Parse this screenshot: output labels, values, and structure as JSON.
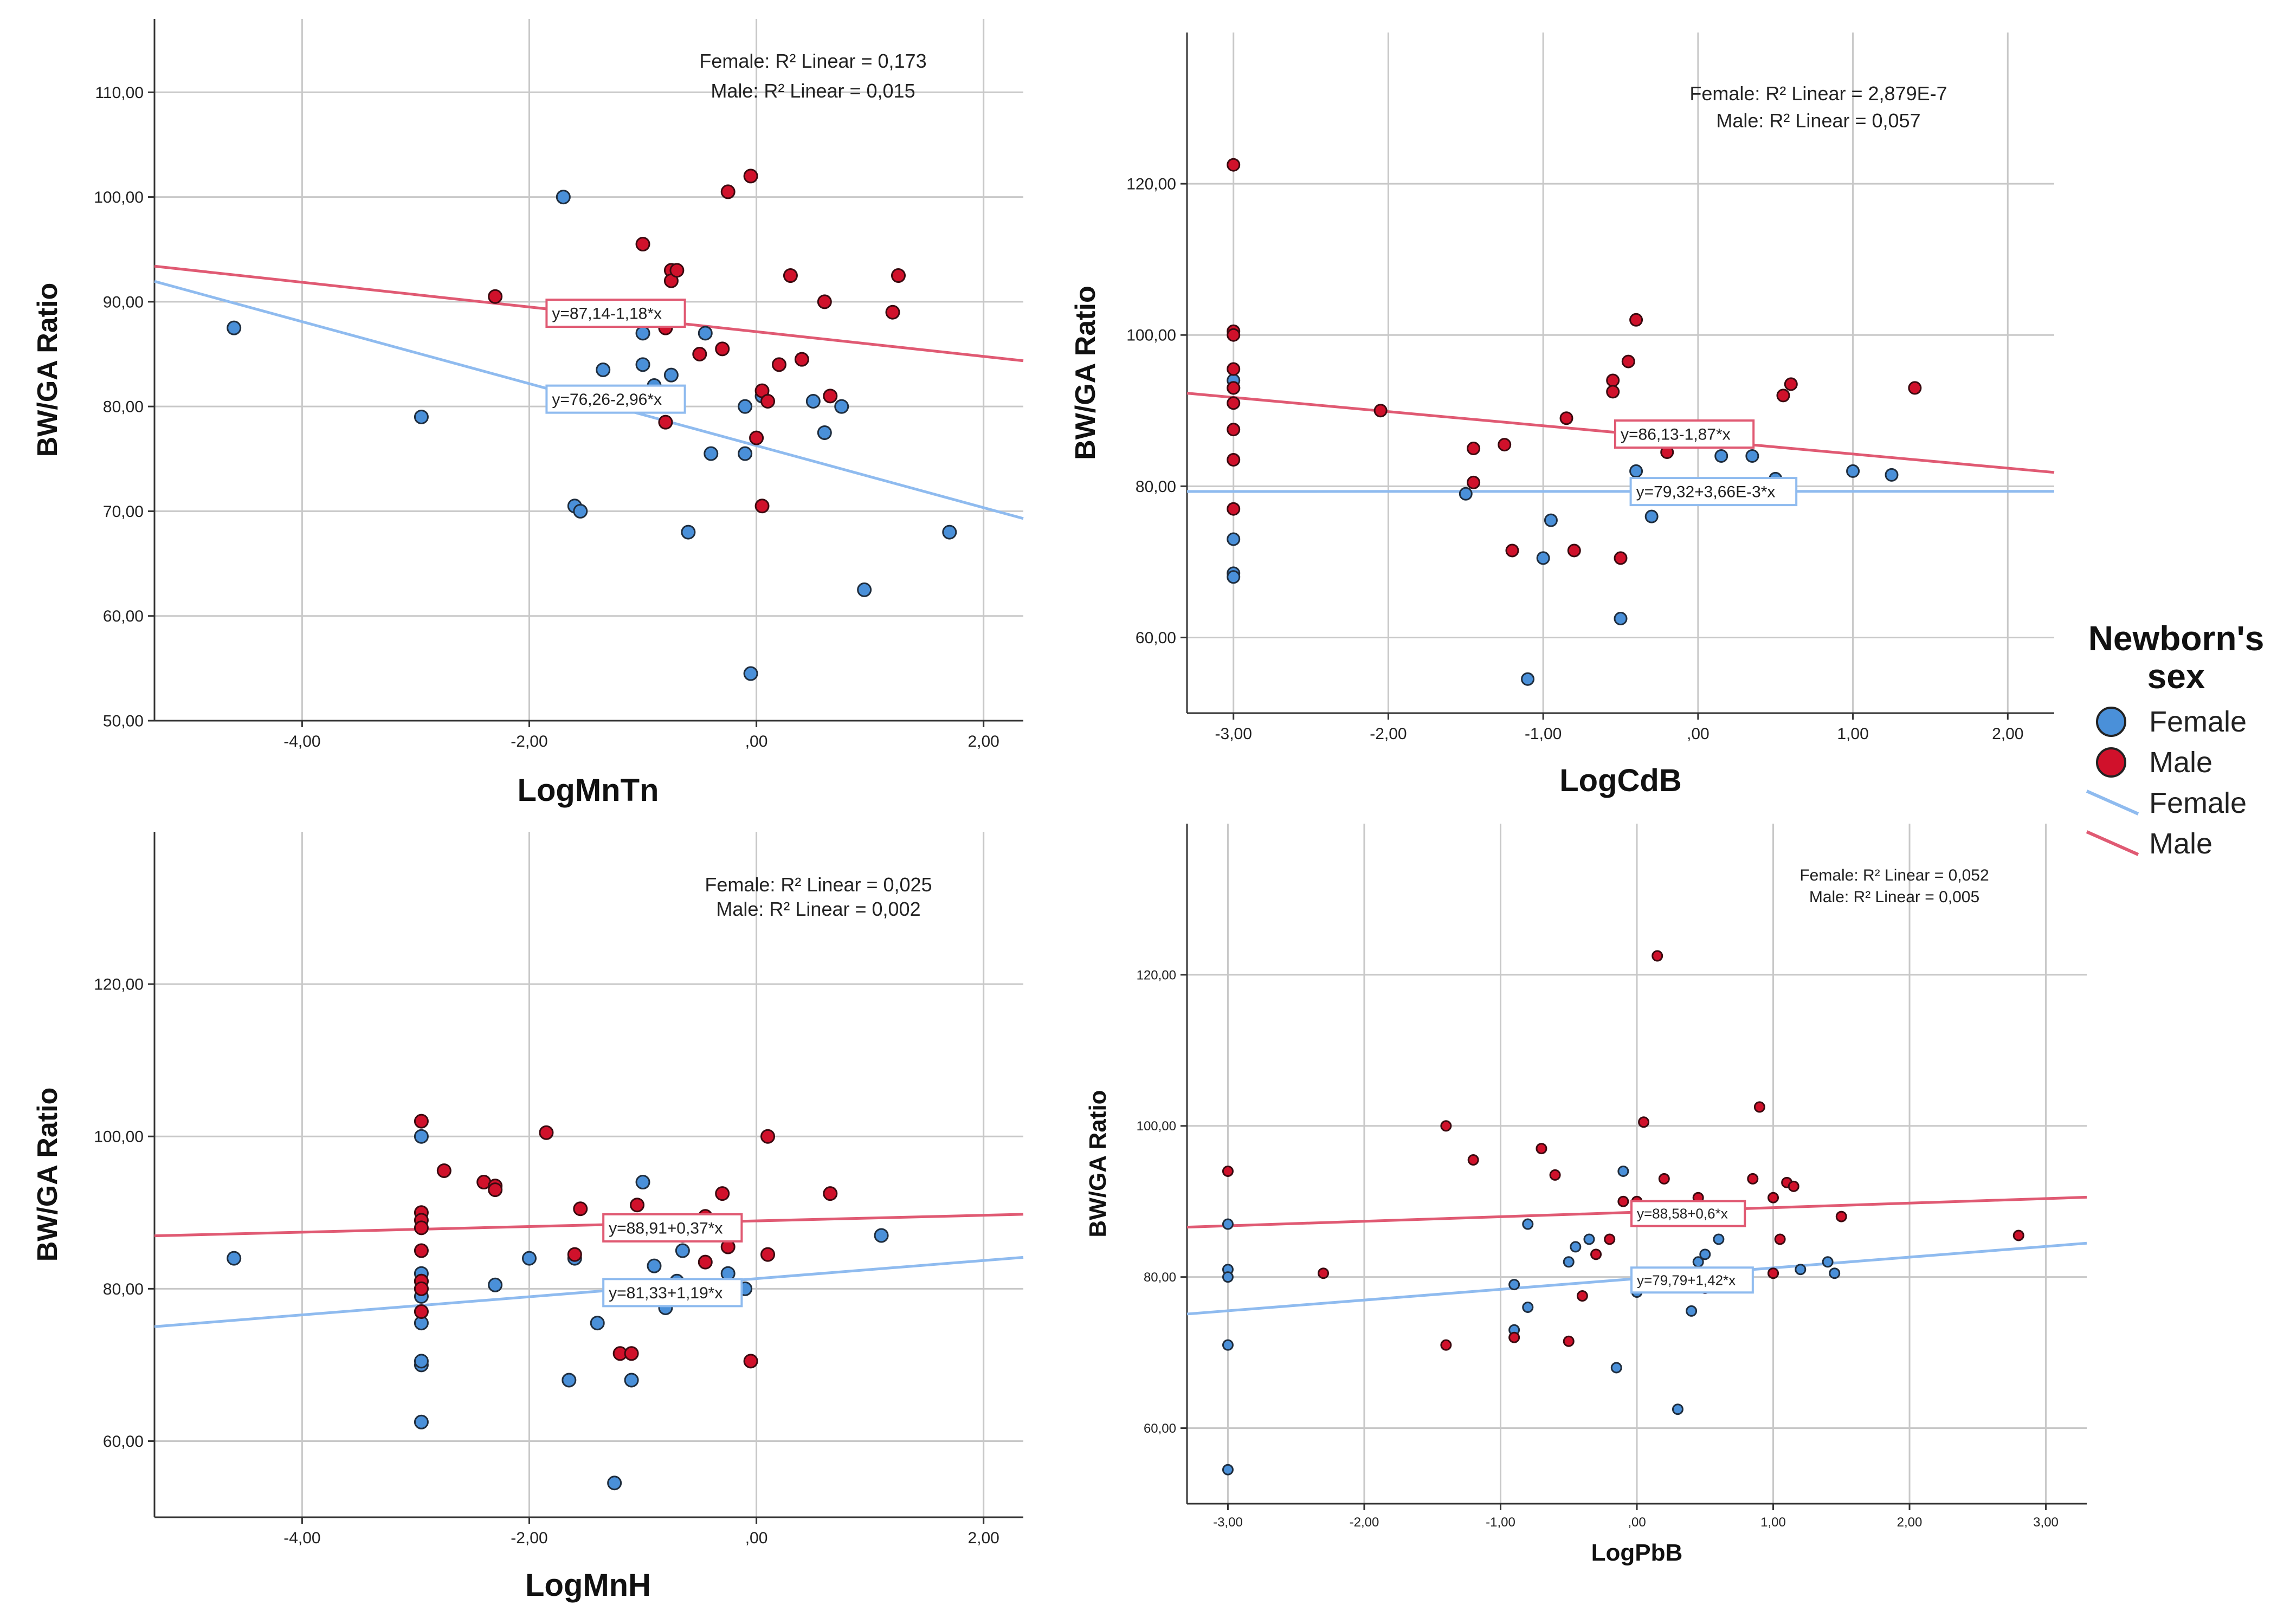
{
  "colors": {
    "female": "#4a90d9",
    "male": "#d0112b",
    "female_line": "#8fbbef",
    "male_line": "#e05a73",
    "grid": "#c8c8c8"
  },
  "legend": {
    "title_line1": "Newborn's",
    "title_line2": "sex",
    "items": [
      {
        "label": "Female",
        "kind": "marker",
        "series": "female"
      },
      {
        "label": "Male",
        "kind": "marker",
        "series": "male"
      },
      {
        "label": "Female",
        "kind": "line",
        "series": "female"
      },
      {
        "label": "Male",
        "kind": "line",
        "series": "male"
      }
    ]
  },
  "chart_data": [
    {
      "type": "scatter",
      "id": "mntn",
      "xlabel": "LogMnTn",
      "ylabel": "BW/GA Ratio",
      "xlim": [
        -5.3,
        2.35
      ],
      "ylim": [
        50,
        117
      ],
      "xticks": [
        -4,
        -2,
        0,
        2
      ],
      "xtick_labels": [
        "-4,00",
        "-2,00",
        ",00",
        "2,00"
      ],
      "yticks": [
        50,
        60,
        70,
        80,
        90,
        100,
        110
      ],
      "ytick_labels": [
        "50,00",
        "60,00",
        "70,00",
        "80,00",
        "90,00",
        "100,00",
        "110,00"
      ],
      "r2_female": "Female: R² Linear = 0,173",
      "r2_male": "Male: R² Linear = 0,015",
      "eq_female": "y=76,26-2,96*x",
      "eq_male": "y=87,14-1,18*x",
      "fit_female": {
        "intercept": 76.26,
        "slope": -2.96
      },
      "fit_male": {
        "intercept": 87.14,
        "slope": -1.18
      },
      "eq_female_pos": [
        -1.8,
        80.7
      ],
      "eq_male_pos": [
        -1.8,
        88.9
      ],
      "female": [
        [
          -4.6,
          87.5
        ],
        [
          -2.95,
          79
        ],
        [
          -1.7,
          100
        ],
        [
          -1.6,
          70.5
        ],
        [
          -1.55,
          70
        ],
        [
          -1.35,
          83.5
        ],
        [
          -1.0,
          87
        ],
        [
          -1.0,
          84
        ],
        [
          -0.9,
          82
        ],
        [
          -0.9,
          81
        ],
        [
          -0.75,
          83
        ],
        [
          -0.6,
          68
        ],
        [
          -0.45,
          87
        ],
        [
          -0.4,
          75.5
        ],
        [
          -0.1,
          80
        ],
        [
          -0.1,
          75.5
        ],
        [
          -0.05,
          54.5
        ],
        [
          0.05,
          81
        ],
        [
          0.5,
          80.5
        ],
        [
          0.6,
          77.5
        ],
        [
          0.75,
          80
        ],
        [
          0.95,
          62.5
        ],
        [
          1.7,
          68
        ]
      ],
      "male": [
        [
          -2.3,
          90.5
        ],
        [
          -1.0,
          95.5
        ],
        [
          -0.8,
          87.5
        ],
        [
          -0.75,
          93
        ],
        [
          -0.75,
          92
        ],
        [
          -0.7,
          93
        ],
        [
          -0.7,
          80.5
        ],
        [
          -0.8,
          78.5
        ],
        [
          -0.5,
          85
        ],
        [
          -0.3,
          85.5
        ],
        [
          -0.25,
          100.5
        ],
        [
          -0.05,
          102
        ],
        [
          0.0,
          77
        ],
        [
          0.05,
          70.5
        ],
        [
          0.05,
          81.5
        ],
        [
          0.1,
          80.5
        ],
        [
          0.2,
          84
        ],
        [
          0.3,
          92.5
        ],
        [
          0.4,
          84.5
        ],
        [
          0.6,
          90
        ],
        [
          0.65,
          81
        ],
        [
          1.2,
          89
        ],
        [
          1.25,
          92.5
        ]
      ]
    },
    {
      "type": "scatter",
      "id": "cdb",
      "xlabel": "LogCdB",
      "ylabel": "BW/GA Ratio",
      "xlim": [
        -3.3,
        2.3
      ],
      "ylim": [
        50,
        140
      ],
      "xticks": [
        -3,
        -2,
        -1,
        0,
        1,
        2
      ],
      "xtick_labels": [
        "-3,00",
        "-2,00",
        "-1,00",
        ",00",
        "1,00",
        "2,00"
      ],
      "yticks": [
        60,
        80,
        100,
        120
      ],
      "ytick_labels": [
        "60,00",
        "80,00",
        "100,00",
        "120,00"
      ],
      "r2_female": "Female: R² Linear = 2,879E-7",
      "r2_male": "Male: R² Linear = 0,057",
      "eq_female": "y=79,32+3,66E-3*x",
      "eq_male": "y=86,13-1,87*x",
      "fit_female": {
        "intercept": 79.32,
        "slope": 0.00366
      },
      "fit_male": {
        "intercept": 86.13,
        "slope": -1.87
      },
      "eq_female_pos": [
        -0.4,
        79.3
      ],
      "eq_male_pos": [
        -0.5,
        86.9
      ],
      "female": [
        [
          -3,
          94
        ],
        [
          -3,
          93
        ],
        [
          -3,
          73
        ],
        [
          -3,
          68.5
        ],
        [
          -3,
          68
        ],
        [
          -1.5,
          79
        ],
        [
          -1.1,
          54.5
        ],
        [
          -1.0,
          70.5
        ],
        [
          -0.95,
          75.5
        ],
        [
          -0.4,
          82
        ],
        [
          -0.3,
          76
        ],
        [
          -0.5,
          62.5
        ],
        [
          0.15,
          84
        ],
        [
          0.2,
          87
        ],
        [
          0.35,
          84
        ],
        [
          0.5,
          81
        ],
        [
          1.0,
          82
        ],
        [
          1.25,
          81.5
        ]
      ],
      "male": [
        [
          -3,
          122.5
        ],
        [
          -3,
          100.5
        ],
        [
          -3,
          100
        ],
        [
          -3,
          95.5
        ],
        [
          -3,
          93
        ],
        [
          -3,
          91
        ],
        [
          -3,
          87.5
        ],
        [
          -3,
          83.5
        ],
        [
          -3,
          77
        ],
        [
          -2.05,
          90
        ],
        [
          -1.45,
          85
        ],
        [
          -1.45,
          80.5
        ],
        [
          -1.2,
          71.5
        ],
        [
          -1.25,
          85.5
        ],
        [
          -0.8,
          71.5
        ],
        [
          -0.85,
          89
        ],
        [
          -0.55,
          94
        ],
        [
          -0.55,
          92.5
        ],
        [
          -0.5,
          70.5
        ],
        [
          -0.45,
          96.5
        ],
        [
          -0.4,
          102
        ],
        [
          -0.2,
          84.5
        ],
        [
          0.55,
          92
        ],
        [
          0.6,
          93.5
        ],
        [
          1.4,
          93
        ]
      ]
    },
    {
      "type": "scatter",
      "id": "mnh",
      "xlabel": "LogMnH",
      "ylabel": "BW/GA Ratio",
      "xlim": [
        -5.3,
        2.35
      ],
      "ylim": [
        50,
        140
      ],
      "xticks": [
        -4,
        -2,
        0,
        2
      ],
      "xtick_labels": [
        "-4,00",
        "-2,00",
        ",00",
        "2,00"
      ],
      "yticks": [
        60,
        80,
        100,
        120
      ],
      "ytick_labels": [
        "60,00",
        "80,00",
        "100,00",
        "120,00"
      ],
      "r2_female": "Female: R² Linear = 0,025",
      "r2_male": "Male: R² Linear = 0,002",
      "eq_female": "y=81,33+1,19*x",
      "eq_male": "y=88,91+0,37*x",
      "fit_female": {
        "intercept": 81.33,
        "slope": 1.19
      },
      "fit_male": {
        "intercept": 88.91,
        "slope": 0.37
      },
      "eq_female_pos": [
        -1.3,
        79.5
      ],
      "eq_male_pos": [
        -1.3,
        88.0
      ],
      "female": [
        [
          -4.6,
          84
        ],
        [
          -2.95,
          82
        ],
        [
          -2.95,
          81
        ],
        [
          -2.95,
          80
        ],
        [
          -2.95,
          79
        ],
        [
          -2.95,
          75.5
        ],
        [
          -2.95,
          70
        ],
        [
          -2.95,
          62.5
        ],
        [
          -2.95,
          70.5
        ],
        [
          -2.95,
          100
        ],
        [
          -2.3,
          80.5
        ],
        [
          -2.0,
          84
        ],
        [
          -1.6,
          84
        ],
        [
          -1.65,
          68
        ],
        [
          -1.4,
          75.5
        ],
        [
          -1.25,
          54.5
        ],
        [
          -1.0,
          94
        ],
        [
          -0.9,
          83
        ],
        [
          -0.8,
          77.5
        ],
        [
          -0.65,
          87
        ],
        [
          -0.65,
          85
        ],
        [
          -0.7,
          81
        ],
        [
          -0.25,
          88
        ],
        [
          -0.25,
          82
        ],
        [
          -0.1,
          80
        ],
        [
          -1.1,
          68
        ],
        [
          1.1,
          87
        ]
      ],
      "male": [
        [
          -2.95,
          102
        ],
        [
          -2.95,
          90
        ],
        [
          -2.95,
          89
        ],
        [
          -2.95,
          88
        ],
        [
          -2.95,
          85
        ],
        [
          -2.95,
          81
        ],
        [
          -2.95,
          80
        ],
        [
          -2.95,
          77
        ],
        [
          -2.75,
          95.5
        ],
        [
          -2.4,
          94
        ],
        [
          -2.3,
          93.5
        ],
        [
          -2.3,
          93
        ],
        [
          -1.85,
          100.5
        ],
        [
          -1.55,
          90.5
        ],
        [
          -1.6,
          84.5
        ],
        [
          -1.2,
          71.5
        ],
        [
          -1.1,
          71.5
        ],
        [
          -1.05,
          91
        ],
        [
          -0.45,
          89.5
        ],
        [
          -0.45,
          83.5
        ],
        [
          -0.3,
          92.5
        ],
        [
          -0.25,
          85.5
        ],
        [
          0.1,
          100
        ],
        [
          0.1,
          84.5
        ],
        [
          -0.05,
          70.5
        ],
        [
          0.65,
          92.5
        ]
      ]
    },
    {
      "type": "scatter",
      "id": "pbb",
      "xlabel": "LogPbB",
      "ylabel": "BW/GA Ratio",
      "xlim": [
        -3.3,
        3.3
      ],
      "ylim": [
        50,
        140
      ],
      "xticks": [
        -3,
        -2,
        -1,
        0,
        1,
        2,
        3
      ],
      "xtick_labels": [
        "-3,00",
        "-2,00",
        "-1,00",
        ",00",
        "1,00",
        "2,00",
        "3,00"
      ],
      "yticks": [
        60,
        80,
        100,
        120
      ],
      "ytick_labels": [
        "60,00",
        "80,00",
        "100,00",
        "120,00"
      ],
      "r2_female": "Female: R² Linear = 0,052",
      "r2_male": "Male: R² Linear = 0,005",
      "eq_female": "y=79,79+1,42*x",
      "eq_male": "y=88,58+0,6*x",
      "fit_female": {
        "intercept": 79.79,
        "slope": 1.42
      },
      "fit_male": {
        "intercept": 88.58,
        "slope": 0.6
      },
      "eq_female_pos": [
        0.0,
        79.6
      ],
      "eq_male_pos": [
        0.0,
        88.4
      ],
      "female": [
        [
          -3,
          87
        ],
        [
          -3,
          81
        ],
        [
          -3,
          80
        ],
        [
          -3,
          71
        ],
        [
          -3,
          54.5
        ],
        [
          -0.9,
          73
        ],
        [
          -0.9,
          79
        ],
        [
          -0.8,
          87
        ],
        [
          -0.8,
          76
        ],
        [
          -0.5,
          82
        ],
        [
          -0.45,
          84
        ],
        [
          -0.35,
          85
        ],
        [
          -0.15,
          68
        ],
        [
          -0.1,
          94
        ],
        [
          0.0,
          78
        ],
        [
          0.4,
          75.5
        ],
        [
          0.45,
          82
        ],
        [
          0.5,
          83
        ],
        [
          0.6,
          85
        ],
        [
          0.3,
          62.5
        ],
        [
          1.0,
          80.5
        ],
        [
          1.2,
          81
        ],
        [
          1.4,
          82
        ],
        [
          1.45,
          80.5
        ]
      ],
      "male": [
        [
          -3,
          94
        ],
        [
          -2.3,
          80.5
        ],
        [
          -1.4,
          100
        ],
        [
          -1.4,
          71
        ],
        [
          -1.2,
          95.5
        ],
        [
          -0.9,
          72
        ],
        [
          -0.7,
          97
        ],
        [
          -0.6,
          93.5
        ],
        [
          -0.5,
          71.5
        ],
        [
          -0.4,
          77.5
        ],
        [
          -0.2,
          85
        ],
        [
          -0.3,
          83
        ],
        [
          -0.1,
          90
        ],
        [
          0.0,
          90
        ],
        [
          0.05,
          100.5
        ],
        [
          0.15,
          122.5
        ],
        [
          0.2,
          93
        ],
        [
          0.45,
          90.5
        ],
        [
          0.5,
          78.5
        ],
        [
          0.85,
          93
        ],
        [
          0.9,
          102.5
        ],
        [
          1.0,
          90.5
        ],
        [
          1.05,
          85
        ],
        [
          1.0,
          80.5
        ],
        [
          1.1,
          92.5
        ],
        [
          1.15,
          92
        ],
        [
          1.5,
          88
        ],
        [
          2.8,
          85.5
        ]
      ]
    }
  ]
}
